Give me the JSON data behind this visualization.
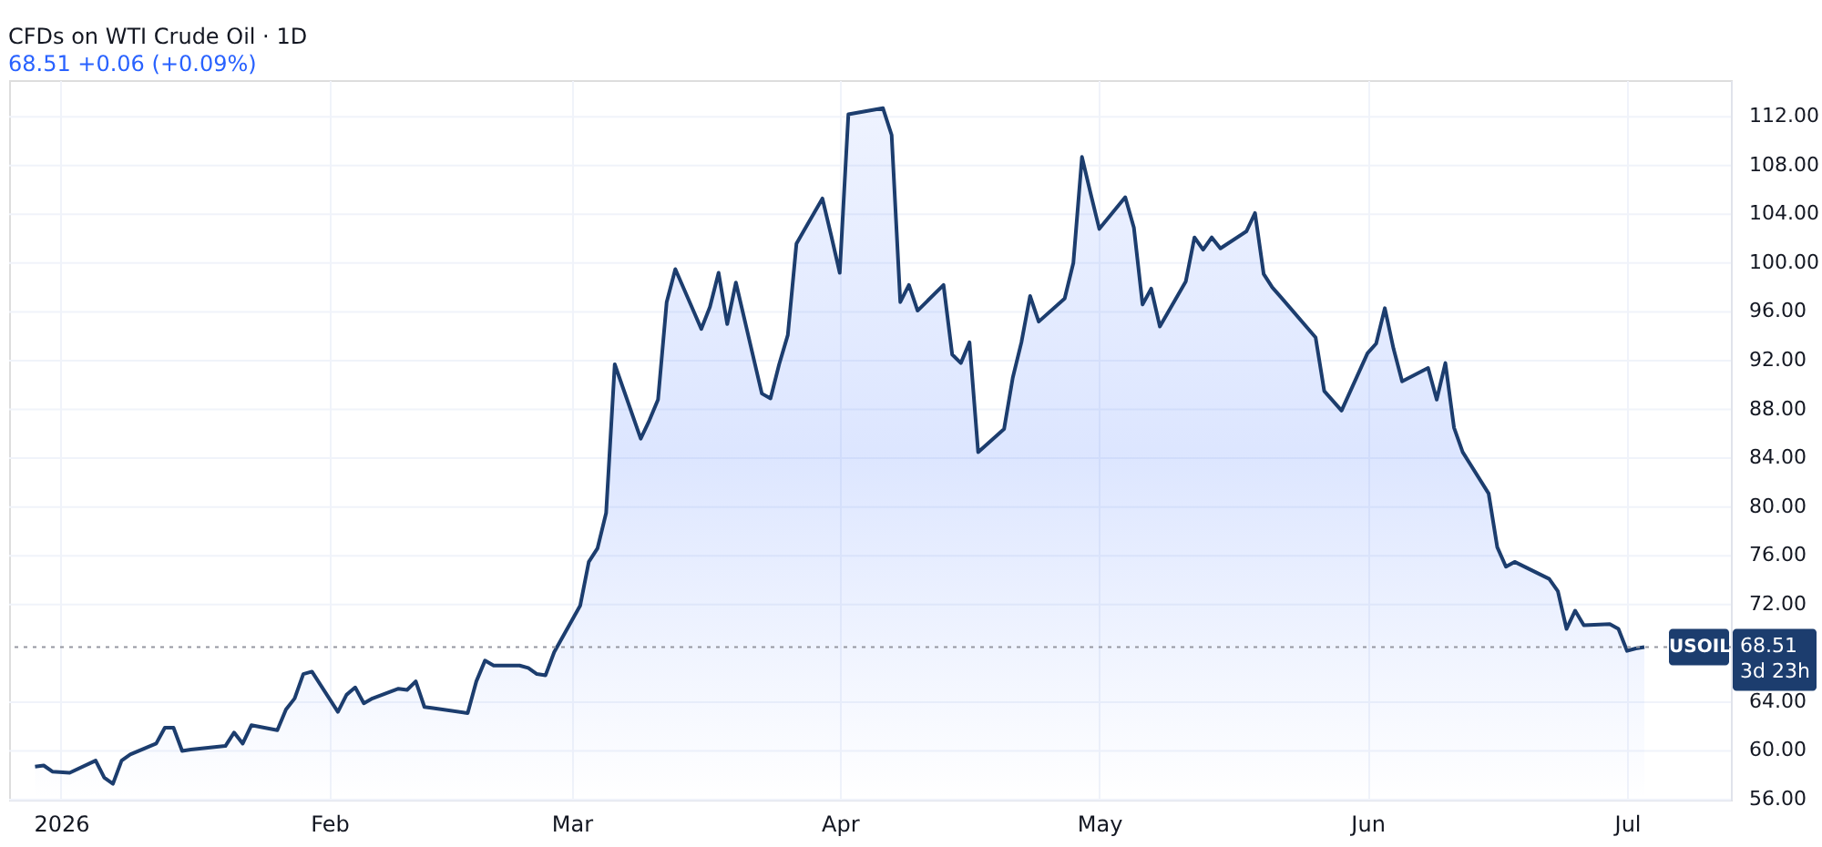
{
  "chart_data": {
    "type": "area",
    "title": "CFDs on WTI Crude Oil · 1D",
    "subtitle": "68.51 +0.06 (+0.09%)",
    "x": [
      "2025-12-29",
      "2025-12-30",
      "2025-12-31",
      "2026-01-02",
      "2026-01-05",
      "2026-01-06",
      "2026-01-07",
      "2026-01-08",
      "2026-01-09",
      "2026-01-12",
      "2026-01-13",
      "2026-01-14",
      "2026-01-15",
      "2026-01-16",
      "2026-01-20",
      "2026-01-21",
      "2026-01-22",
      "2026-01-23",
      "2026-01-26",
      "2026-01-27",
      "2026-01-28",
      "2026-01-29",
      "2026-01-30",
      "2026-02-02",
      "2026-02-03",
      "2026-02-04",
      "2026-02-05",
      "2026-02-06",
      "2026-02-09",
      "2026-02-10",
      "2026-02-11",
      "2026-02-12",
      "2026-02-13",
      "2026-02-17",
      "2026-02-18",
      "2026-02-19",
      "2026-02-20",
      "2026-02-23",
      "2026-02-24",
      "2026-02-25",
      "2026-02-26",
      "2026-02-27",
      "2026-03-02",
      "2026-03-03",
      "2026-03-04",
      "2026-03-05",
      "2026-03-06",
      "2026-03-09",
      "2026-03-10",
      "2026-03-11",
      "2026-03-12",
      "2026-03-13",
      "2026-03-16",
      "2026-03-17",
      "2026-03-18",
      "2026-03-19",
      "2026-03-20",
      "2026-03-23",
      "2026-03-24",
      "2026-03-25",
      "2026-03-26",
      "2026-03-27",
      "2026-03-30",
      "2026-03-31",
      "2026-04-01",
      "2026-04-02",
      "2026-04-06",
      "2026-04-07",
      "2026-04-08",
      "2026-04-09",
      "2026-04-10",
      "2026-04-13",
      "2026-04-14",
      "2026-04-15",
      "2026-04-16",
      "2026-04-17",
      "2026-04-20",
      "2026-04-21",
      "2026-04-22",
      "2026-04-23",
      "2026-04-24",
      "2026-04-27",
      "2026-04-28",
      "2026-04-29",
      "2026-04-30",
      "2026-05-01",
      "2026-05-04",
      "2026-05-05",
      "2026-05-06",
      "2026-05-07",
      "2026-05-08",
      "2026-05-11",
      "2026-05-12",
      "2026-05-13",
      "2026-05-14",
      "2026-05-15",
      "2026-05-18",
      "2026-05-19",
      "2026-05-20",
      "2026-05-21",
      "2026-05-22",
      "2026-05-26",
      "2026-05-27",
      "2026-05-28",
      "2026-05-29",
      "2026-06-01",
      "2026-06-02",
      "2026-06-03",
      "2026-06-04",
      "2026-06-05",
      "2026-06-08",
      "2026-06-09",
      "2026-06-10",
      "2026-06-11",
      "2026-06-12",
      "2026-06-15",
      "2026-06-16",
      "2026-06-17",
      "2026-06-18",
      "2026-06-22",
      "2026-06-23",
      "2026-06-24",
      "2026-06-25",
      "2026-06-26",
      "2026-06-29",
      "2026-06-30",
      "2026-07-01",
      "2026-07-02",
      "2026-07-03"
    ],
    "series": [
      {
        "color": "#1c3d6e",
        "values": [
          58.7,
          58.8,
          58.3,
          58.2,
          59.2,
          57.8,
          57.3,
          59.2,
          59.7,
          60.6,
          61.9,
          61.9,
          60.0,
          60.1,
          60.4,
          61.5,
          60.6,
          62.1,
          61.7,
          63.4,
          64.3,
          66.3,
          66.5,
          63.2,
          64.6,
          65.2,
          63.9,
          64.3,
          65.1,
          65.0,
          65.7,
          63.6,
          63.5,
          63.1,
          65.7,
          67.4,
          67.0,
          67.0,
          66.8,
          66.3,
          66.2,
          68.1,
          71.9,
          75.5,
          76.6,
          79.5,
          91.7,
          85.6,
          87.1,
          88.8,
          96.8,
          99.5,
          94.6,
          96.4,
          99.2,
          95.0,
          98.4,
          89.3,
          88.9,
          91.7,
          94.1,
          101.6,
          105.3,
          102.3,
          99.2,
          112.2,
          112.7,
          110.5,
          96.8,
          98.2,
          96.1,
          98.2,
          92.5,
          91.8,
          93.5,
          84.5,
          86.4,
          90.6,
          93.5,
          97.3,
          95.2,
          97.1,
          100.0,
          108.7,
          105.7,
          102.8,
          105.4,
          102.9,
          96.6,
          97.9,
          94.8,
          98.5,
          102.1,
          101.1,
          102.1,
          101.2,
          102.6,
          104.1,
          99.1,
          98.0,
          97.2,
          93.9,
          89.5,
          88.7,
          87.9,
          92.6,
          93.4,
          96.3,
          93.0,
          90.3,
          91.4,
          88.8,
          91.8,
          86.5,
          84.5,
          81.1,
          76.7,
          75.1,
          75.5,
          74.1,
          73.1,
          70.0,
          71.5,
          70.3,
          70.4,
          70.0,
          68.2,
          68.4,
          68.51
        ]
      }
    ],
    "xlim": [
      "2025-12-26",
      "2026-07-13"
    ],
    "xticks": [
      {
        "value": "2026-01-01",
        "label": "2026"
      },
      {
        "value": "2026-02-01",
        "label": "Feb"
      },
      {
        "value": "2026-03-01",
        "label": "Mar"
      },
      {
        "value": "2026-04-01",
        "label": "Apr"
      },
      {
        "value": "2026-05-01",
        "label": "May"
      },
      {
        "value": "2026-06-01",
        "label": "Jun"
      },
      {
        "value": "2026-07-01",
        "label": "Jul"
      }
    ],
    "ylim": [
      56,
      115
    ],
    "yticks": [
      {
        "value": 56,
        "label": "56.00"
      },
      {
        "value": 60,
        "label": "60.00"
      },
      {
        "value": 64,
        "label": "64.00"
      },
      {
        "value": 72,
        "label": "72.00"
      },
      {
        "value": 76,
        "label": "76.00"
      },
      {
        "value": 80,
        "label": "80.00"
      },
      {
        "value": 84,
        "label": "84.00"
      },
      {
        "value": 88,
        "label": "88.00"
      },
      {
        "value": 92,
        "label": "92.00"
      },
      {
        "value": 96,
        "label": "96.00"
      },
      {
        "value": 100,
        "label": "100.00"
      },
      {
        "value": 104,
        "label": "104.00"
      },
      {
        "value": 108,
        "label": "108.00"
      },
      {
        "value": 112,
        "label": "112.00"
      }
    ],
    "ref_lines": [
      {
        "axis": "y",
        "value": 68.51,
        "label": "USOIL",
        "color": "#9598a1",
        "line_style": "dotted"
      }
    ],
    "annotations": [
      "68.51",
      "3d 23h"
    ],
    "grid": true,
    "legend": false,
    "marker": "none",
    "line_style": "solid"
  }
}
